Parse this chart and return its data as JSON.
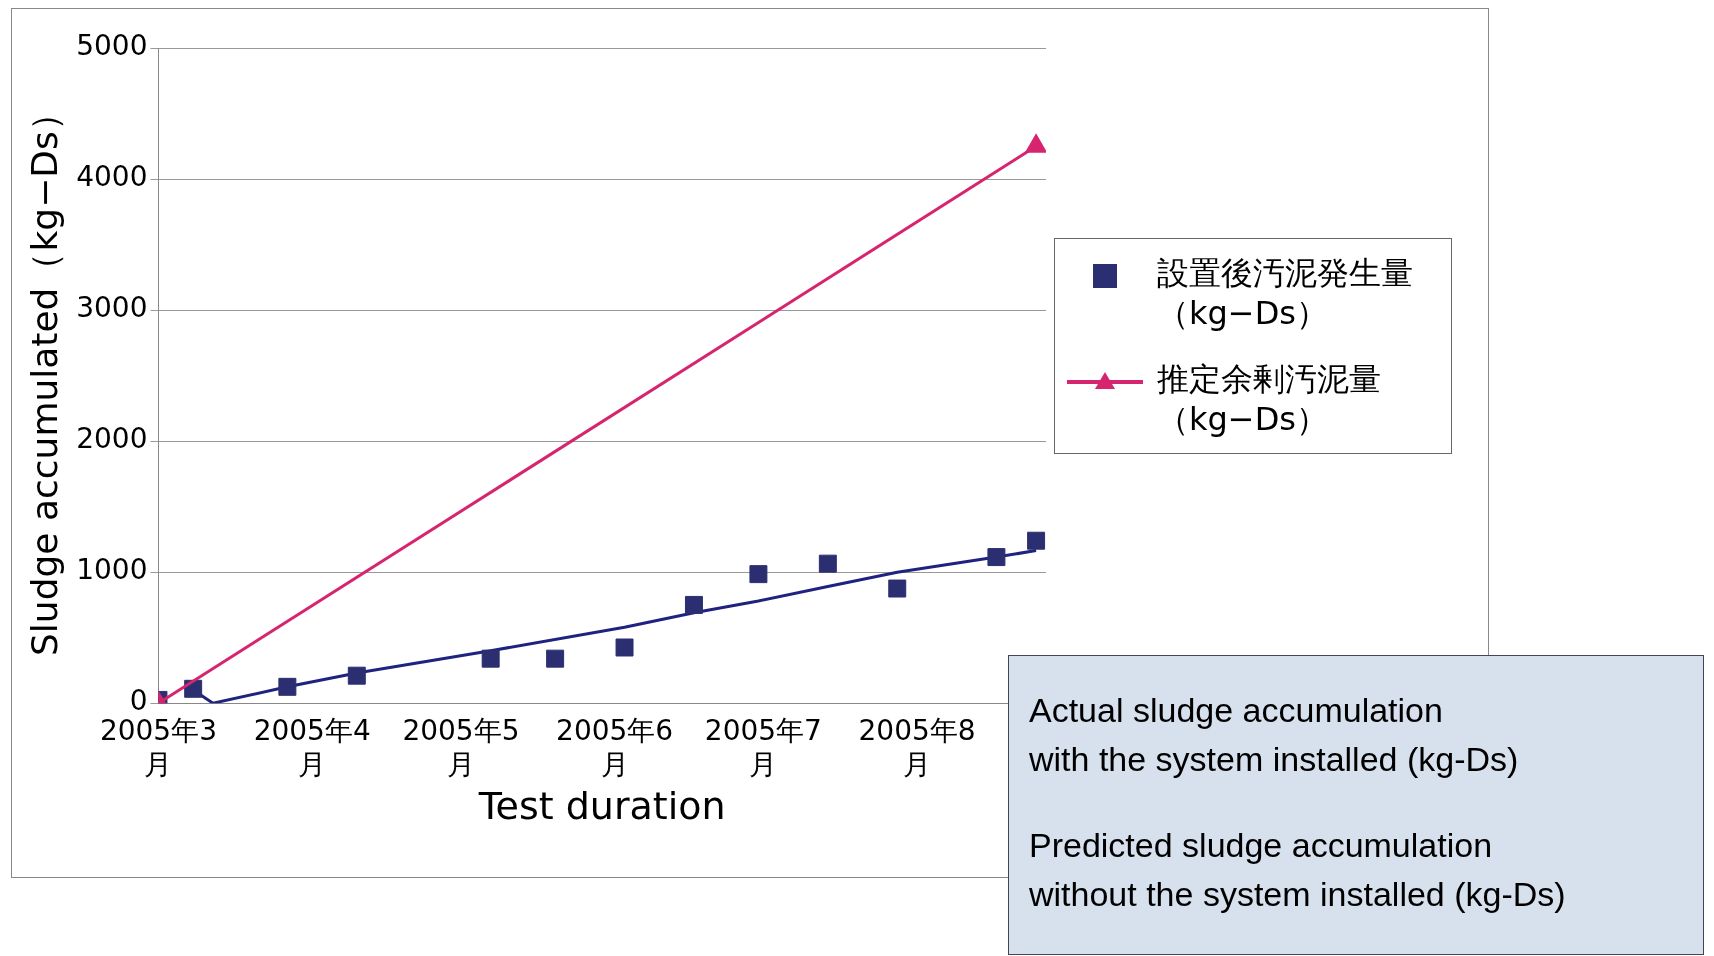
{
  "chart_data": {
    "type": "scatter",
    "xlabel": "Test duration",
    "ylabel": "Sludge accumulated（kg−Ds）",
    "xlim": [
      "2005-03-01",
      "2005-08-27"
    ],
    "xticks": [
      {
        "value": "2005-03-01",
        "label": "2005年3月"
      },
      {
        "value": "2005-04-01",
        "label": "2005年4月"
      },
      {
        "value": "2005-05-01",
        "label": "2005年5月"
      },
      {
        "value": "2005-06-01",
        "label": "2005年6月"
      },
      {
        "value": "2005-07-01",
        "label": "2005年7月"
      },
      {
        "value": "2005-08-01",
        "label": "2005年8月"
      }
    ],
    "ylim": [
      0,
      5000
    ],
    "yticks": [
      0,
      1000,
      2000,
      3000,
      4000,
      5000
    ],
    "grid": "y",
    "legend": "right",
    "series": [
      {
        "name": "設置後汚泥発生量（kg−Ds）",
        "type": "scatter",
        "marker": "square",
        "color": "#2b2f72",
        "x": [
          "2005-03-01",
          "2005-03-08",
          "2005-03-27",
          "2005-04-10",
          "2005-05-07",
          "2005-05-20",
          "2005-06-03",
          "2005-06-17",
          "2005-06-30",
          "2005-07-14",
          "2005-07-28",
          "2005-08-17",
          "2005-08-25"
        ],
        "values": [
          25,
          110,
          125,
          210,
          340,
          340,
          425,
          750,
          985,
          1065,
          875,
          1115,
          1240
        ]
      },
      {
        "type": "line",
        "marker": "none",
        "color": "#1f2380",
        "x": [
          "2005-03-08",
          "2005-03-12",
          "2005-03-27",
          "2005-04-10",
          "2005-05-07",
          "2005-06-03",
          "2005-06-17",
          "2005-06-30",
          "2005-07-14",
          "2005-07-28",
          "2005-08-17",
          "2005-08-25"
        ],
        "values": [
          100,
          0,
          125,
          230,
          400,
          580,
          690,
          780,
          890,
          1000,
          1115,
          1165
        ]
      },
      {
        "name": "推定余剰汚泥量（kg−Ds）",
        "type": "line",
        "marker": "triangle",
        "color": "#d6246e",
        "x": [
          "2005-03-01",
          "2005-08-25"
        ],
        "values": [
          0,
          4250
        ]
      }
    ],
    "annotations": [
      "Actual sludge accumulation\nwith the system installed (kg-Ds)",
      "Predicted sludge accumulation\nwithout the system installed (kg-Ds)"
    ]
  }
}
